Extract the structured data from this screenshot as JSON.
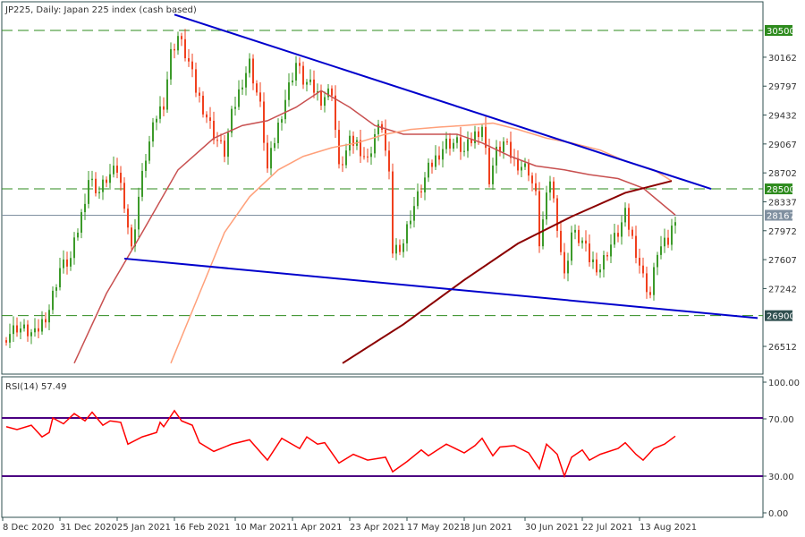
{
  "header": {
    "title": "JP225, Daily:  Japan 225 index (cash based)"
  },
  "rsi_header": {
    "title": "RSI(14) 57.49"
  },
  "colors": {
    "bull": "#3c9a2a",
    "bear": "#f0401e",
    "trendline": "#0000cc",
    "level": "#2e8b1e",
    "ma_fast": "#c85050",
    "ma_mid": "#ffa07a",
    "ma_slow": "#8b0000",
    "rsi": "#ff0000",
    "rsi_levels": "#4b0082",
    "price_line": "#8090a0"
  },
  "chart_data": [
    {
      "type": "candlestick",
      "title": "JP225, Daily:  Japan 225 index (cash based)",
      "ylim": [
        26300,
        30700
      ],
      "y_ticks": [
        "30162",
        "29797",
        "29432",
        "29067",
        "28702",
        "28337",
        "27972",
        "27607",
        "27242",
        "26512"
      ],
      "x_ticks": [
        {
          "bar": 0,
          "label": "8 Dec 2020"
        },
        {
          "bar": 16,
          "label": "31 Dec 2020"
        },
        {
          "bar": 32,
          "label": "25 Jan 2021"
        },
        {
          "bar": 48,
          "label": "16 Feb 2021"
        },
        {
          "bar": 65,
          "label": "10 Mar 2021"
        },
        {
          "bar": 81,
          "label": "1 Apr 2021"
        },
        {
          "bar": 97,
          "label": "23 Apr 2021"
        },
        {
          "bar": 113,
          "label": "17 May 2021"
        },
        {
          "bar": 129,
          "label": "8 Jun 2021"
        },
        {
          "bar": 146,
          "label": "30 Jun 2021"
        },
        {
          "bar": 162,
          "label": "22 Jul 2021"
        },
        {
          "bar": 178,
          "label": "13 Aug 2021"
        }
      ],
      "levels": [
        {
          "value": 30500,
          "label": "30500"
        },
        {
          "value": 28500,
          "label": "28500"
        },
        {
          "value": 26900,
          "label": "26900"
        }
      ],
      "last_price": {
        "value": 28167,
        "label": "28167"
      },
      "closes": [
        [
          1,
          26650
        ],
        [
          4,
          26760
        ],
        [
          9,
          26650
        ],
        [
          13,
          26990
        ],
        [
          16,
          27500
        ],
        [
          19,
          27610
        ],
        [
          22,
          28170
        ],
        [
          24,
          28630
        ],
        [
          27,
          28460
        ],
        [
          29,
          28630
        ],
        [
          32,
          28740
        ],
        [
          34,
          28340
        ],
        [
          36,
          27720
        ],
        [
          38,
          28400
        ],
        [
          40,
          28910
        ],
        [
          43,
          29420
        ],
        [
          45,
          29590
        ],
        [
          47,
          30210
        ],
        [
          49,
          30430
        ],
        [
          52,
          30090
        ],
        [
          54,
          29750
        ],
        [
          57,
          29420
        ],
        [
          59,
          29190
        ],
        [
          62,
          28960
        ],
        [
          64,
          29420
        ],
        [
          67,
          29870
        ],
        [
          69,
          30090
        ],
        [
          72,
          29530
        ],
        [
          74,
          28740
        ],
        [
          77,
          29300
        ],
        [
          79,
          29640
        ],
        [
          82,
          30090
        ],
        [
          84,
          29870
        ],
        [
          87,
          29750
        ],
        [
          89,
          29640
        ],
        [
          92,
          29750
        ],
        [
          94,
          28740
        ],
        [
          97,
          29080
        ],
        [
          99,
          29080
        ],
        [
          102,
          28850
        ],
        [
          104,
          29190
        ],
        [
          106,
          29300
        ],
        [
          108,
          28630
        ],
        [
          109,
          27720
        ],
        [
          112,
          27830
        ],
        [
          114,
          28170
        ],
        [
          117,
          28510
        ],
        [
          119,
          28740
        ],
        [
          122,
          28960
        ],
        [
          124,
          29080
        ],
        [
          127,
          29080
        ],
        [
          129,
          28960
        ],
        [
          132,
          29190
        ],
        [
          134,
          29300
        ],
        [
          136,
          28630
        ],
        [
          138,
          28960
        ],
        [
          140,
          29080
        ],
        [
          143,
          28850
        ],
        [
          147,
          28740
        ],
        [
          149,
          28400
        ],
        [
          150,
          27830
        ],
        [
          153,
          28630
        ],
        [
          155,
          28060
        ],
        [
          157,
          27380
        ],
        [
          159,
          27950
        ],
        [
          162,
          27830
        ],
        [
          164,
          27610
        ],
        [
          167,
          27500
        ],
        [
          169,
          27720
        ],
        [
          172,
          27950
        ],
        [
          174,
          28170
        ],
        [
          177,
          27720
        ],
        [
          179,
          27380
        ],
        [
          181,
          27160
        ],
        [
          183,
          27720
        ],
        [
          186,
          27830
        ],
        [
          188,
          28170
        ]
      ],
      "trendlines": [
        {
          "from": [
            48,
            30700
          ],
          "to": [
            198,
            28500
          ]
        },
        {
          "from": [
            34,
            27620
          ],
          "to": [
            211,
            26870
          ]
        }
      ],
      "series": [
        {
          "key": "ma_fast",
          "values": [
            [
              20,
              26300
            ],
            [
              29,
              27180
            ],
            [
              39,
              27950
            ],
            [
              49,
              28740
            ],
            [
              59,
              29140
            ],
            [
              67,
              29300
            ],
            [
              74,
              29360
            ],
            [
              82,
              29530
            ],
            [
              89,
              29740
            ],
            [
              97,
              29530
            ],
            [
              104,
              29300
            ],
            [
              112,
              29190
            ],
            [
              119,
              29190
            ],
            [
              127,
              29190
            ],
            [
              134,
              29080
            ],
            [
              142,
              28910
            ],
            [
              149,
              28790
            ],
            [
              157,
              28740
            ],
            [
              164,
              28680
            ],
            [
              172,
              28630
            ],
            [
              179,
              28510
            ],
            [
              188,
              28170
            ]
          ]
        },
        {
          "key": "ma_mid",
          "values": [
            [
              47,
              26300
            ],
            [
              54,
              27070
            ],
            [
              62,
              27950
            ],
            [
              69,
              28400
            ],
            [
              77,
              28740
            ],
            [
              84,
              28910
            ],
            [
              92,
              29020
            ],
            [
              99,
              29080
            ],
            [
              107,
              29190
            ],
            [
              114,
              29250
            ],
            [
              122,
              29280
            ],
            [
              129,
              29300
            ],
            [
              137,
              29330
            ],
            [
              144,
              29250
            ],
            [
              152,
              29140
            ],
            [
              159,
              29080
            ],
            [
              167,
              28990
            ],
            [
              174,
              28850
            ],
            [
              182,
              28740
            ],
            [
              187,
              28600
            ]
          ]
        },
        {
          "key": "ma_slow",
          "values": [
            [
              95,
              26300
            ],
            [
              112,
              26790
            ],
            [
              129,
              27350
            ],
            [
              144,
              27810
            ],
            [
              159,
              28150
            ],
            [
              174,
              28450
            ],
            [
              187,
              28600
            ]
          ]
        }
      ]
    },
    {
      "type": "line",
      "title": "RSI(14) 57.49",
      "ylim": [
        0,
        100
      ],
      "y_ticks": [
        "100.00",
        "70.00",
        "30.00",
        "0.00"
      ],
      "levels": [
        70,
        30
      ],
      "values": [
        [
          1,
          64
        ],
        [
          4,
          62
        ],
        [
          8,
          65
        ],
        [
          11,
          57
        ],
        [
          13,
          60
        ],
        [
          14,
          70
        ],
        [
          17,
          66
        ],
        [
          20,
          73
        ],
        [
          23,
          68
        ],
        [
          25,
          74
        ],
        [
          28,
          65
        ],
        [
          30,
          68
        ],
        [
          33,
          67
        ],
        [
          35,
          52
        ],
        [
          39,
          57
        ],
        [
          43,
          60
        ],
        [
          44,
          67
        ],
        [
          45,
          64
        ],
        [
          48,
          75
        ],
        [
          50,
          68
        ],
        [
          53,
          65
        ],
        [
          55,
          53
        ],
        [
          59,
          47
        ],
        [
          64,
          52
        ],
        [
          69,
          55
        ],
        [
          74,
          41
        ],
        [
          78,
          56
        ],
        [
          83,
          49
        ],
        [
          85,
          57
        ],
        [
          88,
          52
        ],
        [
          90,
          53
        ],
        [
          94,
          39
        ],
        [
          98,
          45
        ],
        [
          102,
          41
        ],
        [
          107,
          43
        ],
        [
          109,
          33
        ],
        [
          113,
          40
        ],
        [
          117,
          48
        ],
        [
          119,
          44
        ],
        [
          124,
          52
        ],
        [
          129,
          46
        ],
        [
          132,
          51
        ],
        [
          134,
          56
        ],
        [
          137,
          44
        ],
        [
          139,
          50
        ],
        [
          143,
          51
        ],
        [
          147,
          46
        ],
        [
          150,
          35
        ],
        [
          152,
          52
        ],
        [
          155,
          45
        ],
        [
          157,
          30
        ],
        [
          159,
          43
        ],
        [
          162,
          48
        ],
        [
          164,
          41
        ],
        [
          167,
          45
        ],
        [
          172,
          49
        ],
        [
          174,
          53
        ],
        [
          177,
          45
        ],
        [
          179,
          41
        ],
        [
          182,
          49
        ],
        [
          185,
          52
        ],
        [
          188,
          57.5
        ]
      ]
    }
  ]
}
